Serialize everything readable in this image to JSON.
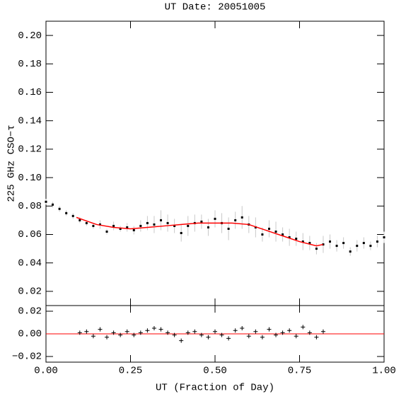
{
  "chart_data": [
    {
      "type": "scatter",
      "title": "UT Date: 20051005",
      "y_label": "225 GHz CSO−τ",
      "xlim": [
        0,
        1
      ],
      "ylim": [
        0.01,
        0.21
      ],
      "xticks": [
        0,
        0.25,
        0.5,
        0.75,
        1
      ],
      "yticks": [
        {
          "value": 0.02,
          "label": "0.02"
        },
        {
          "value": 0.04,
          "label": "0.04"
        },
        {
          "value": 0.06,
          "label": "0.06"
        },
        {
          "value": 0.08,
          "label": "0.08"
        },
        {
          "value": 0.1,
          "label": "0.10"
        },
        {
          "value": 0.12,
          "label": "0.12"
        },
        {
          "value": 0.14,
          "label": "0.14"
        },
        {
          "value": 0.16,
          "label": "0.16"
        },
        {
          "value": 0.18,
          "label": "0.18"
        },
        {
          "value": 0.2,
          "label": "0.20"
        }
      ],
      "series": [
        {
          "marker": "square",
          "color": "#000000",
          "error_color": "#c8c8c8",
          "x": [
            0,
            0.02,
            0.04,
            0.06,
            0.08,
            0.1,
            0.12,
            0.14,
            0.16,
            0.18,
            0.2,
            0.22,
            0.24,
            0.26,
            0.28,
            0.3,
            0.32,
            0.34,
            0.36,
            0.38,
            0.4,
            0.42,
            0.44,
            0.46,
            0.48,
            0.5,
            0.52,
            0.54,
            0.56,
            0.58,
            0.6,
            0.62,
            0.64,
            0.66,
            0.68,
            0.7,
            0.72,
            0.74,
            0.76,
            0.78,
            0.8,
            0.82,
            0.84,
            0.86,
            0.88,
            0.9,
            0.92,
            0.94,
            0.96,
            0.98,
            1
          ],
          "values": [
            0.083,
            0.081,
            0.078,
            0.075,
            0.073,
            0.07,
            0.068,
            0.066,
            0.067,
            0.062,
            0.066,
            0.064,
            0.065,
            0.063,
            0.066,
            0.068,
            0.067,
            0.07,
            0.068,
            0.066,
            0.061,
            0.066,
            0.068,
            0.069,
            0.065,
            0.071,
            0.068,
            0.064,
            0.07,
            0.072,
            0.067,
            0.065,
            0.06,
            0.064,
            0.062,
            0.06,
            0.058,
            0.057,
            0.055,
            0.054,
            0.05,
            0.053,
            0.055,
            0.052,
            0.054,
            0.048,
            0.052,
            0.054,
            0.052,
            0.055,
            0.058
          ],
          "errors": [
            0.002,
            0.002,
            0.002,
            0.002,
            0.002,
            0.002,
            0.002,
            0.002,
            0.003,
            0.002,
            0.003,
            0.002,
            0.003,
            0.003,
            0.004,
            0.005,
            0.006,
            0.007,
            0.006,
            0.005,
            0.006,
            0.007,
            0.006,
            0.005,
            0.006,
            0.006,
            0.007,
            0.008,
            0.006,
            0.008,
            0.006,
            0.007,
            0.005,
            0.006,
            0.007,
            0.005,
            0.006,
            0.005,
            0.006,
            0.005,
            0.004,
            0.006,
            0.005,
            0.004,
            0.004,
            0.003,
            0.004,
            0.004,
            0.003,
            0.004,
            0.004
          ]
        },
        {
          "marker": "line",
          "color": "#ff0000",
          "x": [
            0.09,
            0.15,
            0.2,
            0.25,
            0.3,
            0.35,
            0.4,
            0.45,
            0.5,
            0.55,
            0.6,
            0.65,
            0.7,
            0.75,
            0.8,
            0.82
          ],
          "values": [
            0.072,
            0.067,
            0.065,
            0.064,
            0.065,
            0.066,
            0.067,
            0.068,
            0.068,
            0.068,
            0.067,
            0.063,
            0.059,
            0.055,
            0.052,
            0.053
          ]
        }
      ]
    },
    {
      "type": "scatter",
      "x_label": "UT (Fraction of Day)",
      "xlim": [
        0,
        1
      ],
      "ylim": [
        -0.025,
        0.025
      ],
      "xticks": [
        {
          "value": 0,
          "label": "0.00"
        },
        {
          "value": 0.25,
          "label": "0.25"
        },
        {
          "value": 0.5,
          "label": "0.50"
        },
        {
          "value": 0.75,
          "label": "0.75"
        },
        {
          "value": 1,
          "label": "1.00"
        }
      ],
      "yticks": [
        {
          "value": -0.02,
          "label": "−0.02"
        },
        {
          "value": 0,
          "label": "0.00"
        },
        {
          "value": 0.02,
          "label": "0.02"
        }
      ],
      "hline": 0,
      "hline_color": "#ff0000",
      "series": [
        {
          "marker": "plus",
          "color": "#000000",
          "x": [
            0.1,
            0.12,
            0.14,
            0.16,
            0.18,
            0.2,
            0.22,
            0.24,
            0.26,
            0.28,
            0.3,
            0.32,
            0.34,
            0.36,
            0.38,
            0.4,
            0.42,
            0.44,
            0.46,
            0.48,
            0.5,
            0.52,
            0.54,
            0.56,
            0.58,
            0.6,
            0.62,
            0.64,
            0.66,
            0.68,
            0.7,
            0.72,
            0.74,
            0.76,
            0.78,
            0.8,
            0.82
          ],
          "values": [
            0.001,
            0.002,
            -0.002,
            0.004,
            -0.003,
            0.001,
            -0.001,
            0.002,
            -0.001,
            0.001,
            0.003,
            0.005,
            0.004,
            0.001,
            -0.001,
            -0.006,
            0.001,
            0.002,
            -0.001,
            -0.003,
            0.002,
            -0.001,
            -0.004,
            0.003,
            0.005,
            -0.002,
            0.002,
            -0.003,
            0.004,
            -0.001,
            0.001,
            0.003,
            -0.002,
            0.006,
            0.001,
            -0.003,
            0.002
          ]
        }
      ]
    }
  ]
}
